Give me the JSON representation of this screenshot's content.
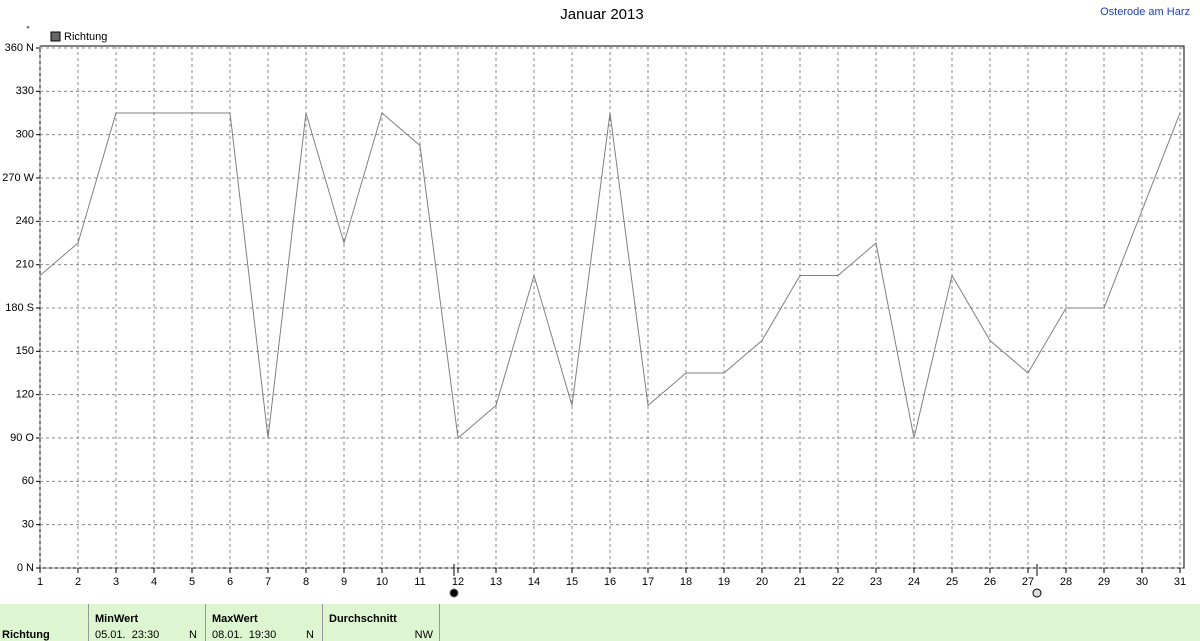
{
  "chart_data": {
    "type": "line",
    "title": "Januar 2013",
    "location": "Osterode am Harz",
    "unit": "°",
    "x": [
      1,
      2,
      3,
      4,
      5,
      6,
      7,
      8,
      9,
      10,
      11,
      12,
      13,
      14,
      15,
      16,
      17,
      18,
      19,
      20,
      21,
      22,
      23,
      24,
      25,
      26,
      27,
      28,
      29,
      30,
      31
    ],
    "series": [
      {
        "name": "Richtung",
        "color": "#808080",
        "values": [
          202.5,
          225,
          315,
          315,
          315,
          315,
          90,
          315,
          225,
          315,
          292.5,
          90,
          112.5,
          202.5,
          112.5,
          315,
          112.5,
          135,
          135,
          157.5,
          202.5,
          202.5,
          225,
          90,
          202.5,
          157.5,
          135,
          180,
          180,
          247.5,
          315
        ]
      }
    ],
    "xlim": [
      1,
      31
    ],
    "xticks": [
      1,
      2,
      3,
      4,
      5,
      6,
      7,
      8,
      9,
      10,
      11,
      12,
      13,
      14,
      15,
      16,
      17,
      18,
      19,
      20,
      21,
      22,
      23,
      24,
      25,
      26,
      27,
      28,
      29,
      30,
      31
    ],
    "ylim": [
      0,
      360
    ],
    "yticks": [
      {
        "value": 0,
        "label": "0 N"
      },
      30,
      60,
      {
        "value": 90,
        "label": "90 O"
      },
      120,
      150,
      {
        "value": 180,
        "label": "180 S"
      },
      210,
      240,
      {
        "value": 270,
        "label": "270 W"
      },
      300,
      330,
      {
        "value": 360,
        "label": "360 N"
      }
    ],
    "grid": true
  },
  "summary": {
    "label": "Richtung",
    "min": {
      "header": "MinWert",
      "time": "05.01.  23:30",
      "value": "N"
    },
    "max": {
      "header": "MaxWert",
      "time": "08.01.  19:30",
      "value": "N"
    },
    "mean": {
      "header": "Durchschnitt",
      "value": "NW"
    }
  }
}
